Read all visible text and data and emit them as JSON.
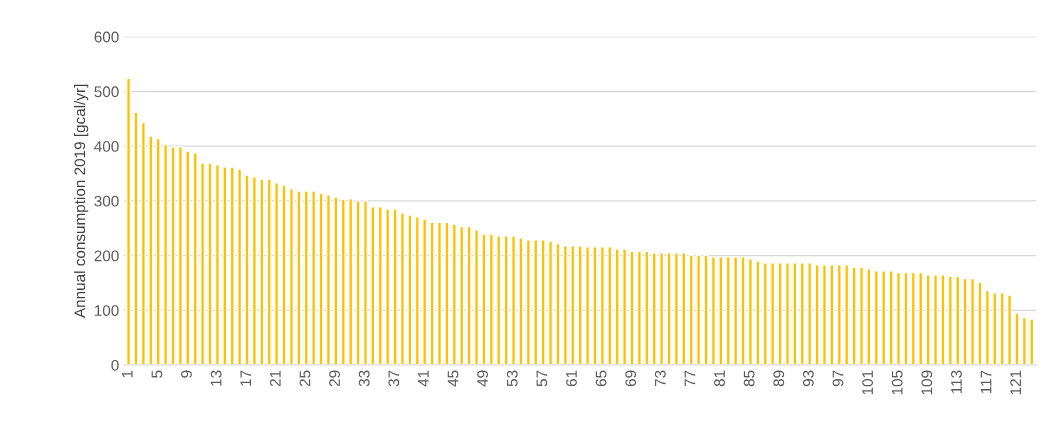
{
  "chart_data": {
    "type": "bar",
    "ylabel": "Annual consumption 2019 [gcal/yr]",
    "categories": [
      "1",
      null,
      null,
      null,
      "5",
      null,
      null,
      null,
      "9",
      null,
      null,
      null,
      "13",
      null,
      null,
      null,
      "17",
      null,
      null,
      null,
      "21",
      null,
      null,
      null,
      "25",
      null,
      null,
      null,
      "29",
      null,
      null,
      null,
      "33",
      null,
      null,
      null,
      "37",
      null,
      null,
      null,
      "41",
      null,
      null,
      null,
      "45",
      null,
      null,
      null,
      "49",
      null,
      null,
      null,
      "53",
      null,
      null,
      null,
      "57",
      null,
      null,
      null,
      "61",
      null,
      null,
      null,
      "65",
      null,
      null,
      null,
      "69",
      null,
      null,
      null,
      "73",
      null,
      null,
      null,
      "77",
      null,
      null,
      null,
      "81",
      null,
      null,
      null,
      "85",
      null,
      null,
      null,
      "89",
      null,
      null,
      null,
      "93",
      null,
      null,
      null,
      "97",
      null,
      null,
      null,
      "101",
      null,
      null,
      null,
      "105",
      null,
      null,
      null,
      "109",
      null,
      null,
      null,
      "113",
      null,
      null,
      null,
      "117",
      null,
      null,
      null,
      "121",
      null,
      null
    ],
    "values": [
      524,
      462,
      443,
      418,
      414,
      403,
      399,
      399,
      391,
      388,
      369,
      369,
      366,
      362,
      362,
      358,
      347,
      344,
      340,
      340,
      333,
      329,
      322,
      318,
      318,
      318,
      314,
      311,
      307,
      303,
      304,
      300,
      300,
      289,
      289,
      285,
      285,
      278,
      274,
      271,
      267,
      261,
      261,
      261,
      257,
      253,
      253,
      247,
      239,
      239,
      236,
      236,
      236,
      232,
      229,
      229,
      229,
      226,
      222,
      218,
      218,
      218,
      216,
      216,
      216,
      216,
      212,
      212,
      208,
      208,
      208,
      205,
      205,
      205,
      205,
      205,
      201,
      201,
      201,
      198,
      198,
      198,
      198,
      198,
      194,
      190,
      187,
      187,
      187,
      187,
      187,
      187,
      187,
      183,
      183,
      183,
      183,
      183,
      179,
      179,
      176,
      172,
      172,
      172,
      169,
      169,
      169,
      169,
      165,
      165,
      165,
      162,
      162,
      158,
      158,
      151,
      136,
      132,
      132,
      128,
      95,
      87,
      84
    ],
    "color": "#ffc000",
    "ylim": [
      0,
      600
    ],
    "yticks": [
      0,
      100,
      200,
      300,
      400,
      500,
      600
    ],
    "grid": "y"
  }
}
